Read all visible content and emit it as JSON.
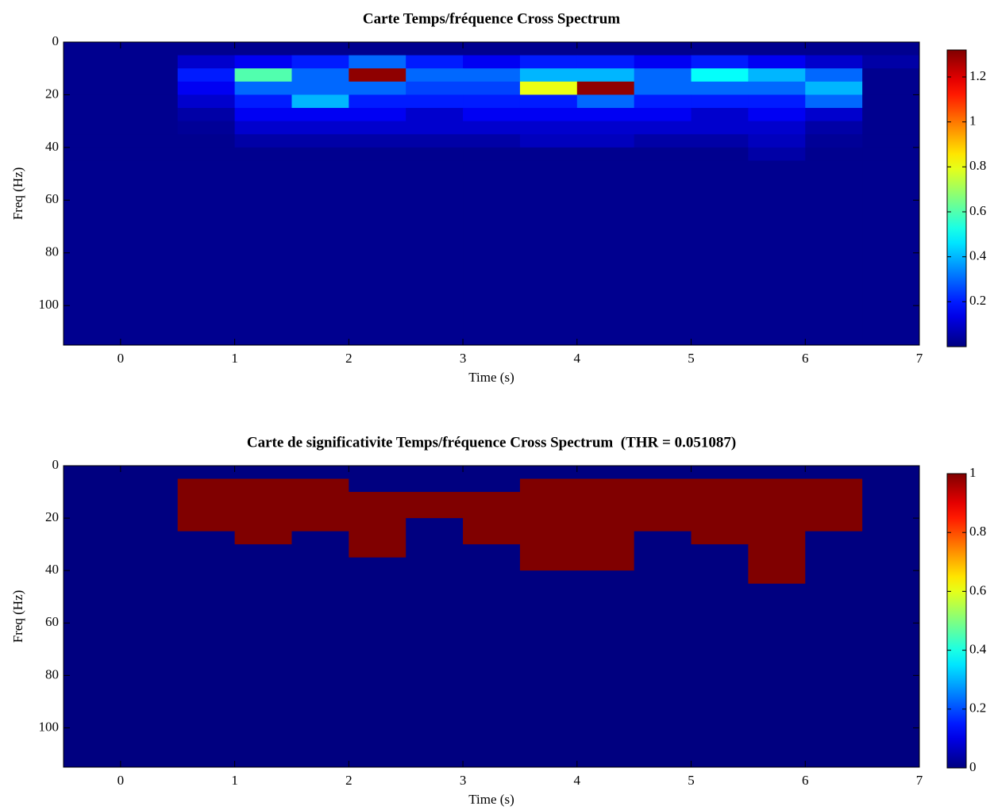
{
  "chart_data": [
    {
      "type": "heatmap",
      "title": "Carte Temps/fréquence Cross Spectrum",
      "xlabel": "Time (s)",
      "ylabel": "Freq (Hz)",
      "xbins": [
        -0.5,
        0,
        0.5,
        1,
        1.5,
        2,
        2.5,
        3,
        3.5,
        4,
        4.5,
        5,
        5.5,
        6,
        6.5,
        7
      ],
      "ybins": [
        0,
        5,
        10,
        15,
        20,
        25,
        30,
        35,
        40,
        45,
        115
      ],
      "z": [
        [
          0.02,
          0.02,
          0.02,
          0.02,
          0.02,
          0.02,
          0.02,
          0.02,
          0.02,
          0.02,
          0.02,
          0.02,
          0.02,
          0.02,
          0.02
        ],
        [
          0.02,
          0.02,
          0.1,
          0.15,
          0.2,
          0.3,
          0.2,
          0.15,
          0.2,
          0.2,
          0.15,
          0.2,
          0.15,
          0.1,
          0.05
        ],
        [
          0.02,
          0.02,
          0.2,
          0.6,
          0.3,
          1.3,
          0.3,
          0.3,
          0.4,
          0.4,
          0.3,
          0.5,
          0.4,
          0.3,
          0.02
        ],
        [
          0.02,
          0.02,
          0.15,
          0.3,
          0.3,
          0.3,
          0.25,
          0.25,
          0.8,
          1.3,
          0.3,
          0.3,
          0.3,
          0.4,
          0.02
        ],
        [
          0.02,
          0.02,
          0.1,
          0.2,
          0.4,
          0.2,
          0.2,
          0.2,
          0.2,
          0.3,
          0.2,
          0.2,
          0.2,
          0.3,
          0.02
        ],
        [
          0.02,
          0.02,
          0.05,
          0.15,
          0.15,
          0.15,
          0.1,
          0.15,
          0.15,
          0.15,
          0.15,
          0.1,
          0.15,
          0.1,
          0.02
        ],
        [
          0.02,
          0.02,
          0.03,
          0.1,
          0.1,
          0.1,
          0.1,
          0.1,
          0.1,
          0.1,
          0.1,
          0.1,
          0.1,
          0.05,
          0.02
        ],
        [
          0.02,
          0.02,
          0.02,
          0.05,
          0.05,
          0.05,
          0.05,
          0.05,
          0.08,
          0.08,
          0.05,
          0.05,
          0.08,
          0.03,
          0.02
        ],
        [
          0.02,
          0.02,
          0.02,
          0.02,
          0.02,
          0.02,
          0.02,
          0.02,
          0.02,
          0.02,
          0.02,
          0.02,
          0.05,
          0.02,
          0.02
        ],
        [
          0.02,
          0.02,
          0.02,
          0.02,
          0.02,
          0.02,
          0.02,
          0.02,
          0.02,
          0.02,
          0.02,
          0.02,
          0.02,
          0.02,
          0.02
        ]
      ],
      "xlim": [
        -0.5,
        7
      ],
      "ylim": [
        0,
        115
      ],
      "y_reversed": true,
      "xticks": [
        0,
        1,
        2,
        3,
        4,
        5,
        6,
        7
      ],
      "yticks": [
        0,
        20,
        40,
        60,
        80,
        100
      ],
      "colormap": "jet",
      "clim": [
        0,
        1.32
      ],
      "cticks": [
        0.2,
        0.4,
        0.6,
        0.8,
        1,
        1.2
      ]
    },
    {
      "type": "heatmap",
      "title": "Carte de significativite Temps/fréquence Cross Spectrum  (THR = 0.051087)",
      "xlabel": "Time (s)",
      "ylabel": "Freq (Hz)",
      "xbins": [
        -0.5,
        0,
        0.5,
        1,
        1.5,
        2,
        2.5,
        3,
        3.5,
        4,
        4.5,
        5,
        5.5,
        6,
        6.5,
        7
      ],
      "ybins": [
        0,
        5,
        10,
        15,
        20,
        25,
        30,
        35,
        40,
        45,
        115
      ],
      "z": [
        [
          0,
          0,
          0,
          0,
          0,
          0,
          0,
          0,
          0,
          0,
          0,
          0,
          0,
          0,
          0
        ],
        [
          0,
          0,
          1,
          1,
          1,
          0,
          0,
          0,
          1,
          1,
          1,
          1,
          1,
          1,
          0
        ],
        [
          0,
          0,
          1,
          1,
          1,
          1,
          1,
          1,
          1,
          1,
          1,
          1,
          1,
          1,
          0
        ],
        [
          0,
          0,
          1,
          1,
          1,
          1,
          1,
          1,
          1,
          1,
          1,
          1,
          1,
          1,
          0
        ],
        [
          0,
          0,
          1,
          1,
          1,
          1,
          0,
          1,
          1,
          1,
          1,
          1,
          1,
          1,
          0
        ],
        [
          0,
          0,
          0,
          1,
          0,
          1,
          0,
          1,
          1,
          1,
          0,
          1,
          1,
          0,
          0
        ],
        [
          0,
          0,
          0,
          0,
          0,
          1,
          0,
          0,
          1,
          1,
          0,
          0,
          1,
          0,
          0
        ],
        [
          0,
          0,
          0,
          0,
          0,
          0,
          0,
          0,
          1,
          1,
          0,
          0,
          1,
          0,
          0
        ],
        [
          0,
          0,
          0,
          0,
          0,
          0,
          0,
          0,
          0,
          0,
          0,
          0,
          1,
          0,
          0
        ],
        [
          0,
          0,
          0,
          0,
          0,
          0,
          0,
          0,
          0,
          0,
          0,
          0,
          0,
          0,
          0
        ]
      ],
      "xlim": [
        -0.5,
        7
      ],
      "ylim": [
        0,
        115
      ],
      "y_reversed": true,
      "xticks": [
        0,
        1,
        2,
        3,
        4,
        5,
        6,
        7
      ],
      "yticks": [
        0,
        20,
        40,
        60,
        80,
        100
      ],
      "colormap": "jet",
      "clim": [
        0,
        1
      ],
      "cticks": [
        0,
        0.2,
        0.4,
        0.6,
        0.8,
        1
      ]
    }
  ]
}
